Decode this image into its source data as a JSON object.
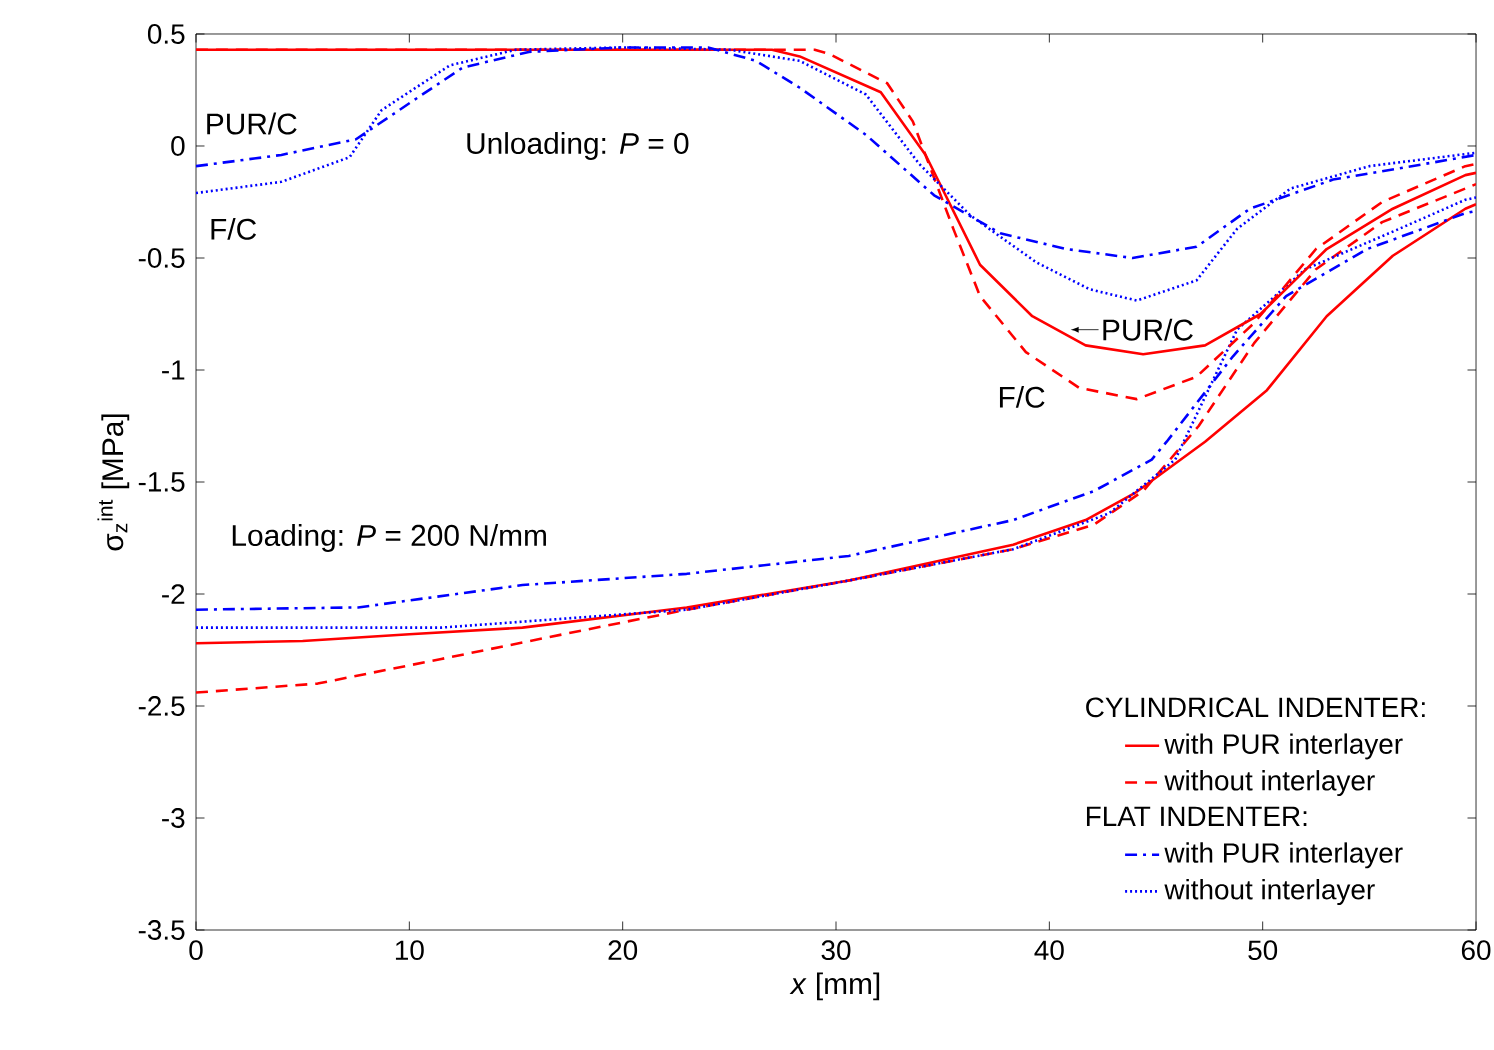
{
  "chart_data": {
    "type": "line",
    "xlabel": "*x* [mm]",
    "ylabel": "σ$_{z}$$^{int}$ [MPa]",
    "xlim": [
      0,
      60
    ],
    "ylim": [
      -3.5,
      0.5
    ],
    "xticks": [
      0,
      10,
      20,
      30,
      40,
      50,
      60
    ],
    "yticks": [
      0.5,
      0,
      -0.5,
      -1,
      -1.5,
      -2,
      -2.5,
      -3,
      -3.5
    ],
    "grid": false,
    "legend": "bottom right",
    "marker": "none",
    "series": [
      {
        "name": "with PUR interlayer",
        "color": "#ff0000",
        "line_style": "solid",
        "x": [
          0,
          5,
          10,
          15.3,
          23,
          30.6,
          38.3,
          41.7,
          44,
          47.3,
          50.2,
          53,
          56.1,
          59.5,
          60
        ],
        "values": [
          -2.22,
          -2.21,
          -2.18,
          -2.15,
          -2.06,
          -1.94,
          -1.78,
          -1.67,
          -1.55,
          -1.32,
          -1.09,
          -0.76,
          -0.49,
          -0.28,
          -0.26
        ]
      },
      {
        "name": "without interlayer",
        "color": "#ff0000",
        "line_style": "dashed",
        "x": [
          0,
          5.7,
          11.5,
          17.2,
          23,
          30.6,
          38.3,
          42.1,
          44.4,
          47,
          49.6,
          52.5,
          55.6,
          59.5,
          60
        ],
        "values": [
          -2.44,
          -2.4,
          -2.29,
          -2.18,
          -2.07,
          -1.94,
          -1.8,
          -1.69,
          -1.54,
          -1.25,
          -0.88,
          -0.55,
          -0.34,
          -0.19,
          -0.17
        ]
      },
      {
        "name": "with PUR interlayer",
        "color": "#0000ff",
        "line_style": "dashdot",
        "x": [
          0,
          7.6,
          15.3,
          23,
          30.6,
          38.3,
          42.1,
          44.8,
          45.5,
          48.6,
          51.1,
          54.9,
          59.5,
          60
        ],
        "values": [
          -2.07,
          -2.06,
          -1.96,
          -1.91,
          -1.83,
          -1.67,
          -1.54,
          -1.4,
          -1.32,
          -0.94,
          -0.67,
          -0.46,
          -0.3,
          -0.29
        ]
      },
      {
        "name": "without interlayer",
        "color": "#0000ff",
        "line_style": "dotted",
        "x": [
          0,
          11.5,
          23,
          30.6,
          38.3,
          42.8,
          45.9,
          48.8,
          52,
          56.4,
          59.5,
          60
        ],
        "values": [
          -2.15,
          -2.15,
          -2.07,
          -1.94,
          -1.8,
          -1.64,
          -1.4,
          -0.82,
          -0.55,
          -0.37,
          -0.24,
          -0.23
        ]
      },
      {
        "color": "#ff0000",
        "line_style": "solid",
        "x": [
          0,
          10,
          20,
          27,
          28.3,
          32.1,
          34.2,
          36.75,
          39.2,
          41.7,
          44.4,
          47.3,
          49.9,
          53,
          56.1,
          59.5,
          60
        ],
        "values": [
          0.43,
          0.43,
          0.43,
          0.43,
          0.4,
          0.24,
          -0.04,
          -0.53,
          -0.76,
          -0.89,
          -0.93,
          -0.89,
          -0.75,
          -0.46,
          -0.28,
          -0.13,
          -0.12
        ]
      },
      {
        "color": "#ff0000",
        "line_style": "dashed",
        "x": [
          0,
          10,
          20,
          29,
          29.7,
          32.4,
          33.6,
          35.5,
          36.75,
          38.9,
          41.4,
          44.1,
          46.9,
          49.6,
          52.5,
          55.6,
          59.5,
          60
        ],
        "values": [
          0.43,
          0.43,
          0.43,
          0.43,
          0.41,
          0.28,
          0.11,
          -0.37,
          -0.67,
          -0.92,
          -1.08,
          -1.13,
          -1.03,
          -0.79,
          -0.46,
          -0.25,
          -0.09,
          -0.08
        ]
      },
      {
        "color": "#0000ff",
        "line_style": "dashdot",
        "x": [
          0,
          4,
          7.5,
          10.3,
          12.5,
          15.6,
          20,
          24,
          26.25,
          28.3,
          31.4,
          34.6,
          37.7,
          40.8,
          43.9,
          46.9,
          49.4,
          53.3,
          56.4,
          60
        ],
        "values": [
          -0.09,
          -0.04,
          0.03,
          0.21,
          0.35,
          0.42,
          0.44,
          0.44,
          0.38,
          0.26,
          0.05,
          -0.22,
          -0.39,
          -0.46,
          -0.5,
          -0.45,
          -0.28,
          -0.15,
          -0.1,
          -0.04
        ]
      },
      {
        "color": "#0000ff",
        "line_style": "dotted",
        "x": [
          0,
          4,
          7.2,
          8.7,
          11.9,
          15,
          20,
          25,
          28.3,
          31.4,
          33.9,
          36.3,
          39.4,
          41.9,
          44.1,
          46.9,
          48.8,
          51.3,
          55,
          60
        ],
        "values": [
          -0.21,
          -0.16,
          -0.05,
          0.16,
          0.36,
          0.43,
          0.44,
          0.43,
          0.38,
          0.23,
          -0.08,
          -0.31,
          -0.52,
          -0.64,
          -0.69,
          -0.6,
          -0.37,
          -0.19,
          -0.09,
          -0.03
        ]
      }
    ],
    "annotations": [
      "CYLINDRICAL INDENTER:",
      "FLAT INDENTER:",
      "PUR/C",
      "F/C",
      "Unloading: *P* = 0",
      "Loading: *P* = 200 N/mm",
      {
        "text": "PUR/C",
        "x": 41,
        "y": -0.82
      },
      "F/C"
    ]
  }
}
